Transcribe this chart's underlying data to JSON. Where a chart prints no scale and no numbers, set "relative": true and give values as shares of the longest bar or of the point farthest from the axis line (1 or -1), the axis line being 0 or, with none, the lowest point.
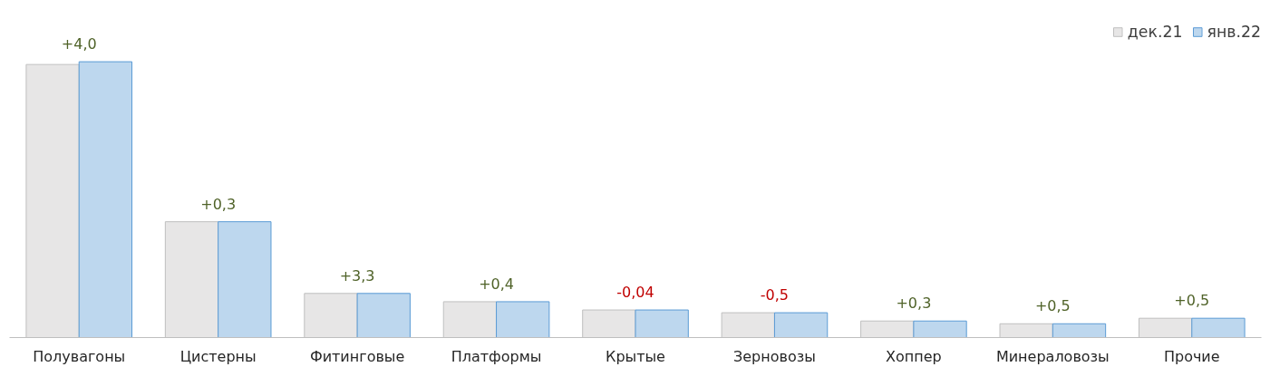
{
  "chart_data": {
    "type": "bar",
    "relative": true,
    "legend": "top right",
    "categories": [
      "Полувагоны",
      "Цистерны",
      "Фитинговые",
      "Платформы",
      "Крытые",
      "Зерновозы",
      "Хоппер",
      "Минераловозы",
      "Прочие"
    ],
    "series": [
      {
        "name": "дек.21",
        "color": "#e7e6e6",
        "values": [
          0.99,
          0.42,
          0.16,
          0.13,
          0.1,
          0.09,
          0.06,
          0.05,
          0.07
        ]
      },
      {
        "name": "янв.22",
        "color": "#bdd7ee",
        "values": [
          1,
          0.42,
          0.16,
          0.13,
          0.1,
          0.09,
          0.06,
          0.05,
          0.07
        ]
      }
    ],
    "annotations": [
      {
        "text": "+4,0",
        "x": "Полувагоны",
        "y": 1
      },
      {
        "text": "+0,3",
        "x": "Цистерны",
        "y": 0.42
      },
      {
        "text": "+3,3",
        "x": "Фитинговые",
        "y": 0.16
      },
      {
        "text": "+0,4",
        "x": "Платформы",
        "y": 0.13
      },
      {
        "text": "-0,04",
        "x": "Крытые",
        "y": 0.1
      },
      {
        "text": "-0,5",
        "x": "Зерновозы",
        "y": 0.09
      },
      {
        "text": "+0,3",
        "x": "Хоппер",
        "y": 0.06
      },
      {
        "text": "+0,5",
        "x": "Минераловозы",
        "y": 0.05
      },
      {
        "text": "+0,5",
        "x": "Прочие",
        "y": 0.07
      }
    ]
  }
}
